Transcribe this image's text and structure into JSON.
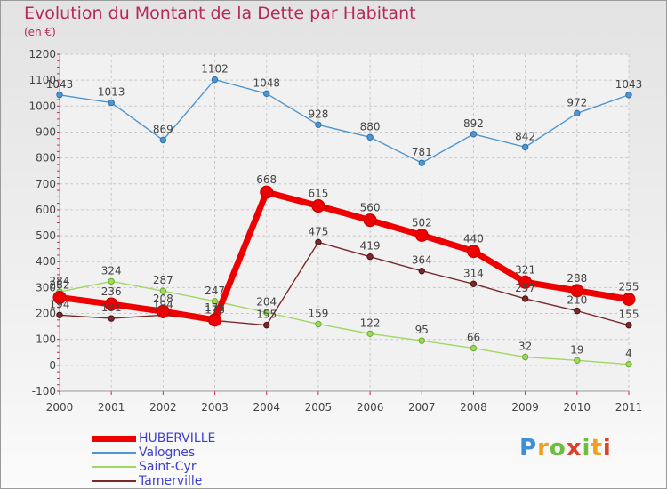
{
  "title": "Evolution du Montant de la Dette par Habitant",
  "subtitle": "(en €)",
  "logo": {
    "text": "Proxiti"
  },
  "chart_data": {
    "type": "line",
    "categories": [
      "2000",
      "2001",
      "2002",
      "2003",
      "2004",
      "2005",
      "2006",
      "2007",
      "2008",
      "2009",
      "2010",
      "2011"
    ],
    "ylim": [
      -100,
      1200
    ],
    "yticks": [
      -100,
      0,
      100,
      200,
      300,
      400,
      500,
      600,
      700,
      800,
      900,
      1000,
      1100,
      1200
    ],
    "grid": true,
    "legend_position": "bottom-left",
    "series": [
      {
        "name": "HUBERVILLE",
        "color": "#ee0000",
        "values": [
          262,
          236,
          208,
          175,
          668,
          615,
          560,
          502,
          440,
          321,
          288,
          255
        ]
      },
      {
        "name": "Valognes",
        "color": "#4f96d0",
        "values": [
          1043,
          1013,
          869,
          1102,
          1048,
          928,
          880,
          781,
          892,
          842,
          972,
          1043
        ]
      },
      {
        "name": "Saint-Cyr",
        "color": "#9fd860",
        "values": [
          284,
          324,
          287,
          247,
          204,
          159,
          122,
          95,
          66,
          32,
          19,
          4
        ]
      },
      {
        "name": "Tamerville",
        "color": "#7a2a2a",
        "values": [
          194,
          181,
          194,
          173,
          155,
          475,
          419,
          364,
          314,
          257,
          210,
          155
        ]
      }
    ]
  }
}
